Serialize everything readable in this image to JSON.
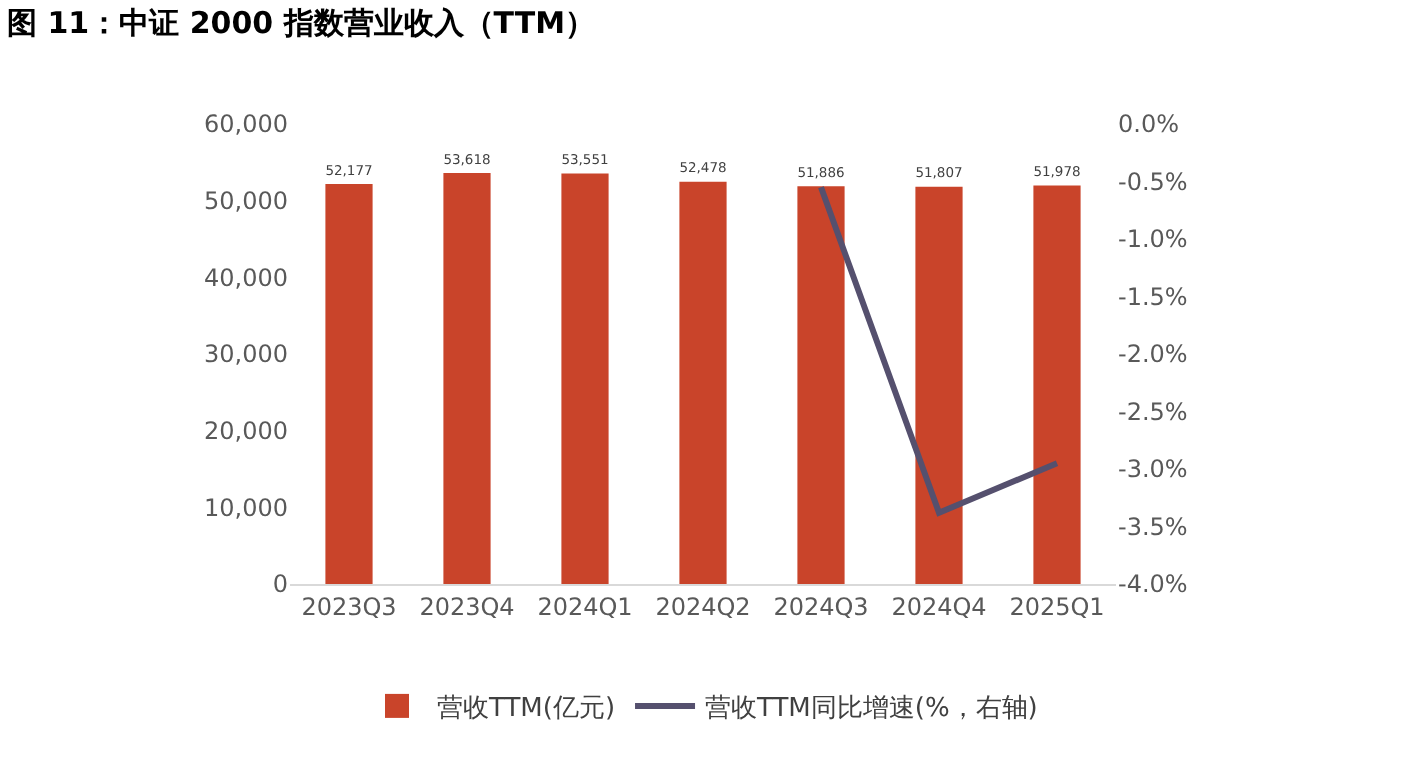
{
  "chart_data": {
    "type": "bar",
    "title": "图 11：中证 2000 指数营业收入（TTM）",
    "categories": [
      "2023Q3",
      "2023Q4",
      "2024Q1",
      "2024Q2",
      "2024Q3",
      "2024Q4",
      "2025Q1"
    ],
    "series": [
      {
        "name": "营收TTM(亿元)",
        "color": "#c9442a",
        "values": [
          52177,
          53618,
          53551,
          52478,
          51886,
          51807,
          51978
        ],
        "value_labels": [
          "52,177",
          "53,618",
          "53,551",
          "52,478",
          "51,886",
          "51,807",
          "51,978"
        ]
      },
      {
        "name": "营收TTM同比增速(%，右轴)",
        "type": "line",
        "axis": "y2",
        "color": "#55506e",
        "values": [
          null,
          null,
          null,
          null,
          -0.55,
          -3.38,
          -2.95
        ]
      }
    ],
    "ylim": [
      0,
      60000
    ],
    "yticks": [
      0,
      {
        "value": 10000,
        "label": "10,000"
      },
      {
        "value": 20000,
        "label": "20,000"
      },
      {
        "value": 30000,
        "label": "30,000"
      },
      {
        "value": 40000,
        "label": "40,000"
      },
      {
        "value": 50000,
        "label": "50,000"
      },
      {
        "value": 60000,
        "label": "60,000"
      }
    ],
    "y2lim": [
      -4,
      0
    ],
    "y2ticks": [
      {
        "value": 0,
        "label": "0.0%"
      },
      {
        "value": -0.5,
        "label": "-0.5%"
      },
      {
        "value": -1,
        "label": "-1.0%"
      },
      {
        "value": -1.5,
        "label": "-1.5%"
      },
      {
        "value": -2,
        "label": "-2.0%"
      },
      {
        "value": -2.5,
        "label": "-2.5%"
      },
      {
        "value": -3,
        "label": "-3.0%"
      },
      {
        "value": -3.5,
        "label": "-3.5%"
      },
      {
        "value": -4,
        "label": "-4.0%"
      }
    ],
    "grid": false,
    "legend": "bottom",
    "marker": "none",
    "line_style": "solid"
  }
}
